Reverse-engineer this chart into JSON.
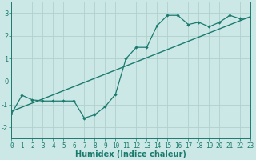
{
  "xlabel": "Humidex (Indice chaleur)",
  "background_color": "#cce8e6",
  "grid_color": "#b0d0ce",
  "line_color": "#1a7a6e",
  "curve_x": [
    0,
    1,
    2,
    3,
    4,
    5,
    6,
    7,
    8,
    9,
    10,
    11,
    12,
    13,
    14,
    15,
    16,
    17,
    18,
    19,
    20,
    21,
    22,
    23
  ],
  "curve_y": [
    -1.4,
    -0.6,
    -0.8,
    -0.85,
    -0.85,
    -0.85,
    -0.85,
    -1.6,
    -1.45,
    -1.1,
    -0.55,
    1.0,
    1.5,
    1.5,
    2.45,
    2.9,
    2.9,
    2.5,
    2.6,
    2.4,
    2.6,
    2.9,
    2.75,
    2.8
  ],
  "trend_x": [
    0,
    23
  ],
  "trend_y": [
    -1.3,
    2.85
  ],
  "xlim": [
    0,
    23
  ],
  "ylim": [
    -2.5,
    3.5
  ],
  "yticks": [
    -2,
    -1,
    0,
    1,
    2,
    3
  ],
  "xticks": [
    0,
    1,
    2,
    3,
    4,
    5,
    6,
    7,
    8,
    9,
    10,
    11,
    12,
    13,
    14,
    15,
    16,
    17,
    18,
    19,
    20,
    21,
    22,
    23
  ],
  "tick_fontsize": 5.5,
  "xlabel_fontsize": 7
}
